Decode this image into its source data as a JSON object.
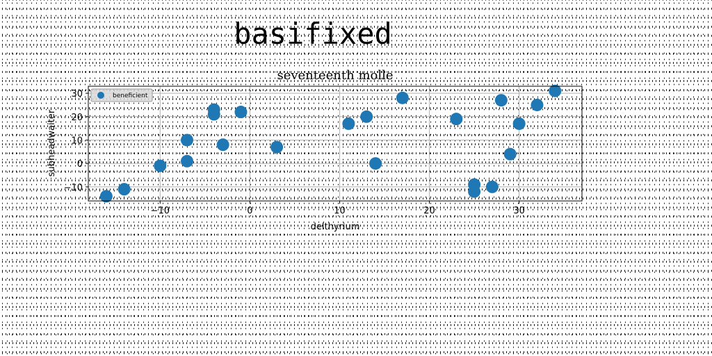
{
  "figure": {
    "suptitle": "basifixed"
  },
  "chart_data": {
    "type": "scatter",
    "title": "seventeenth molle",
    "xlabel": "delthyrium",
    "ylabel": "subheadwaiter",
    "xlim": [
      -18,
      37
    ],
    "ylim": [
      -16,
      33
    ],
    "xticks": [
      -10,
      0,
      10,
      20,
      30
    ],
    "yticks": [
      -10,
      0,
      10,
      20,
      30
    ],
    "grid": true,
    "legend_position": "upper left",
    "series": [
      {
        "name": "beneficient",
        "color": "#1f77b4",
        "x": [
          -16,
          -14,
          -10,
          -7,
          -7,
          -4,
          -4,
          -3,
          -1,
          3,
          11,
          13,
          14,
          17,
          23,
          25,
          25,
          27,
          28,
          29,
          30,
          32,
          34
        ],
        "y": [
          -14,
          -11,
          -1,
          10,
          1,
          23,
          21,
          8,
          22,
          7,
          17,
          20,
          0,
          28,
          19,
          -9,
          -12,
          -10,
          27,
          4,
          17,
          25,
          31
        ]
      }
    ]
  }
}
